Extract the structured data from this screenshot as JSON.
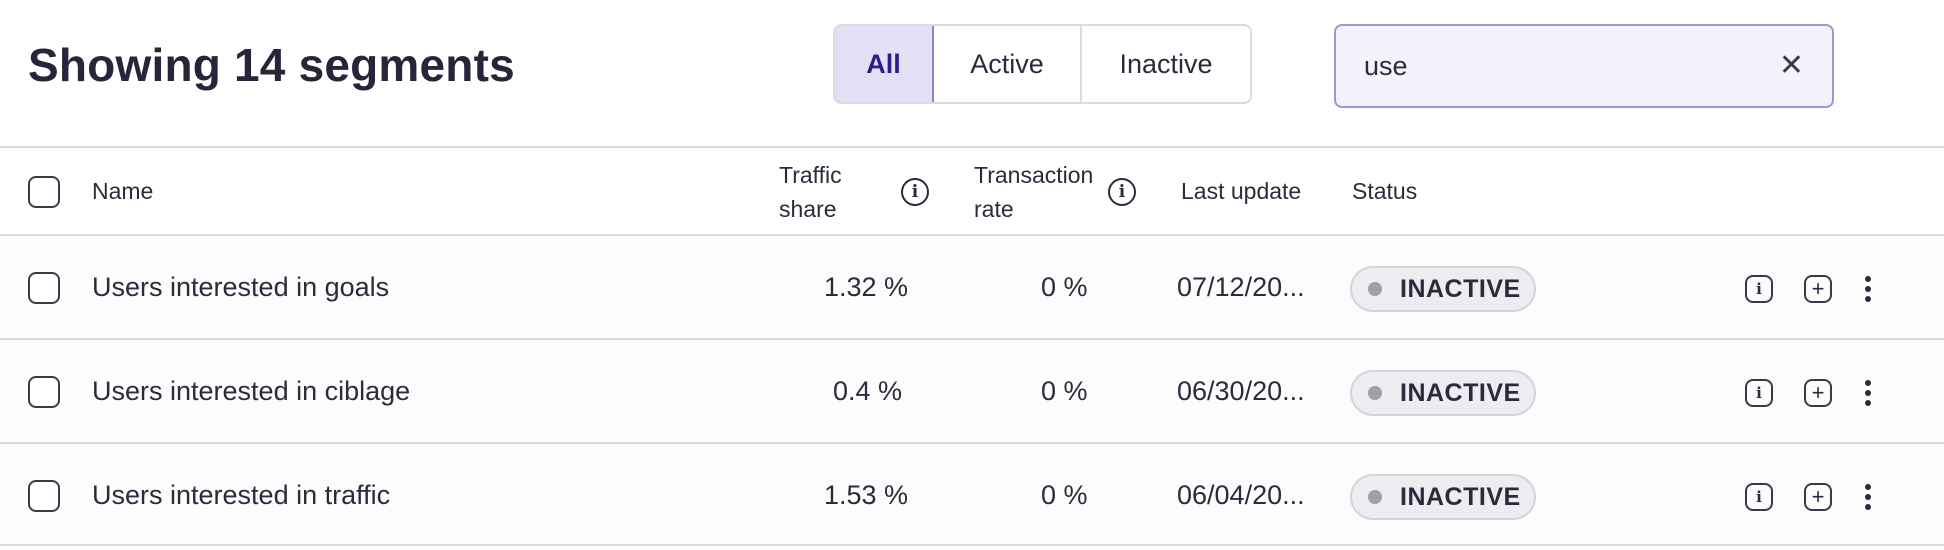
{
  "header": {
    "title": "Showing 14 segments",
    "filters": [
      "All",
      "Active",
      "Inactive"
    ],
    "selected_filter": "All",
    "search": {
      "value": "use",
      "clear_icon": "close-icon"
    }
  },
  "table": {
    "columns": {
      "name": "Name",
      "traffic_share_line1": "Traffic",
      "traffic_share_line2": "share",
      "transaction_rate_line1": "Transaction",
      "transaction_rate_line2": "rate",
      "last_update": "Last update",
      "status": "Status"
    },
    "rows": [
      {
        "name": "Users interested in goals",
        "traffic_share": "1.32 %",
        "transaction_rate": "0 %",
        "last_update": "07/12/20...",
        "status": "INACTIVE"
      },
      {
        "name": "Users interested in ciblage",
        "traffic_share": "0.4 %",
        "transaction_rate": "0 %",
        "last_update": "06/30/20...",
        "status": "INACTIVE"
      },
      {
        "name": "Users interested in traffic",
        "traffic_share": "1.53 %",
        "transaction_rate": "0 %",
        "last_update": "06/04/20...",
        "status": "INACTIVE"
      }
    ]
  },
  "colors": {
    "accent": "#2a1f8a",
    "accent_bg": "#e3e0f5",
    "inactive_badge_bg": "#ececf1",
    "inactive_dot": "#9fa0ac"
  }
}
